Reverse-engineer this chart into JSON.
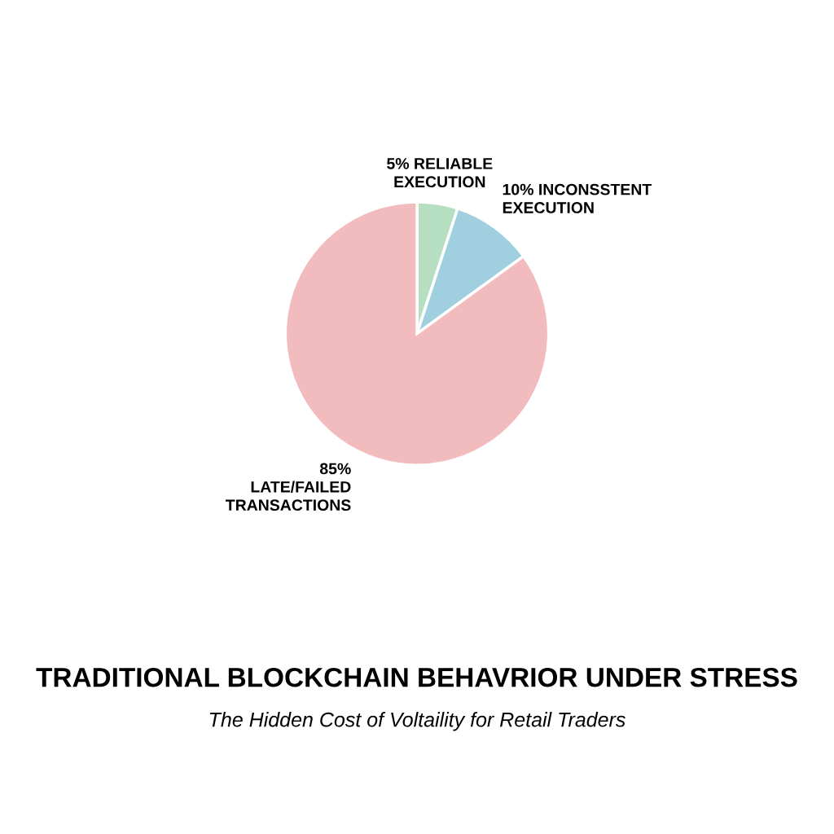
{
  "chart_data": {
    "type": "pie",
    "title": "TRADITIONAL BLOCKCHAIN BEHAVRIOR UNDER STRESS",
    "subtitle": "The Hidden Cost of Voltaility for Retail Traders",
    "categories": [
      "5% RELIABLE\nEXECUTION",
      "10% INCONSSTENT\nEXECUTION",
      "85%\nLATE/FAILED\nTRANSACTIONS"
    ],
    "values": [
      5,
      10,
      85
    ],
    "colors": [
      "#b6dfc2",
      "#a0cfdf",
      "#f2bcbf"
    ]
  }
}
